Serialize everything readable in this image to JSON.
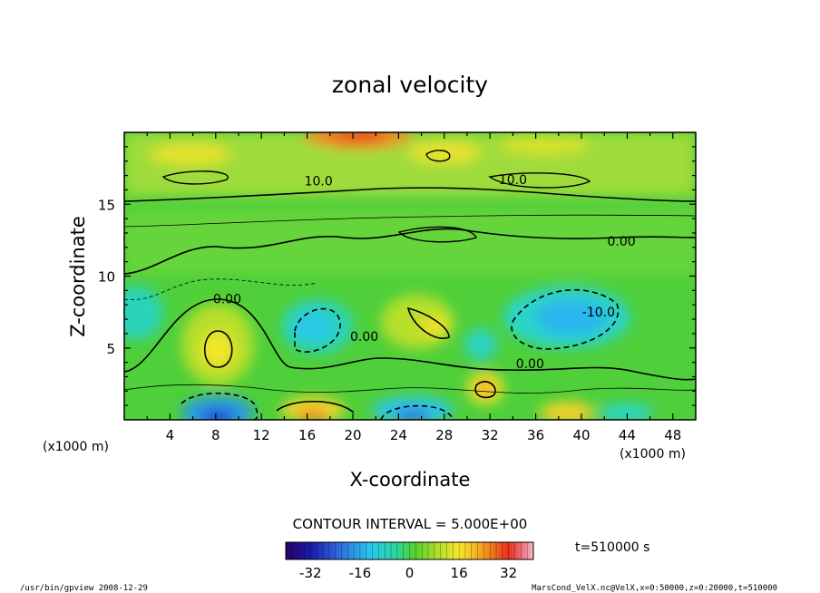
{
  "chart_data": {
    "type": "heatmap",
    "title": "zonal velocity",
    "xlabel": "X-coordinate",
    "ylabel": "Z-coordinate",
    "x_unit": "(x1000 m)",
    "x_unit_right": "(x1000 m)",
    "xlim": [
      0,
      50
    ],
    "ylim": [
      0,
      20
    ],
    "x_ticks": [
      "4",
      "8",
      "12",
      "16",
      "20",
      "24",
      "28",
      "32",
      "36",
      "40",
      "44",
      "48"
    ],
    "y_ticks": [
      "5",
      "10",
      "15"
    ],
    "contour_labels": [
      {
        "text": "10.0",
        "x": 17,
        "y": 16.3
      },
      {
        "text": "10.0",
        "x": 34,
        "y": 16.4
      },
      {
        "text": "0.00",
        "x": 43.5,
        "y": 12.1
      },
      {
        "text": "0.00",
        "x": 9,
        "y": 8.1
      },
      {
        "text": "-10.0",
        "x": 41.5,
        "y": 7.2
      },
      {
        "text": "0.00",
        "x": 21,
        "y": 5.5
      },
      {
        "text": "0.00",
        "x": 35.5,
        "y": 3.6
      }
    ],
    "colorbar": {
      "min": -40,
      "max": 40,
      "ticks": [
        "-32",
        "-16",
        "0",
        "16",
        "32"
      ]
    },
    "contour_interval_text": "CONTOUR INTERVAL = 5.000E+00",
    "time_text": "t=510000 s"
  },
  "footer": {
    "left": "/usr/bin/gpview  2008-12-29",
    "right": "MarsCond_VelX.nc@VelX,x=0:50000,z=0:20000,t=510000"
  }
}
